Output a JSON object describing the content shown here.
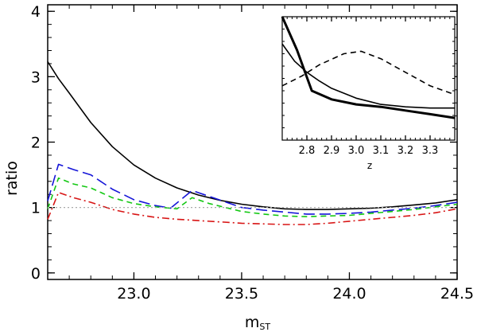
{
  "chart_data": [
    {
      "type": "line",
      "title": "",
      "xlabel": "m",
      "xlabel_subscript": "ST",
      "ylabel": "ratio",
      "xlim": [
        22.6,
        24.5
      ],
      "ylim": [
        -0.1,
        4.1
      ],
      "xticks": [
        23.0,
        23.5,
        24.0,
        24.5
      ],
      "xtick_labels": [
        "23.0",
        "23.5",
        "24.0",
        "24.5"
      ],
      "yticks": [
        0,
        1,
        2,
        3,
        4
      ],
      "ytick_labels": [
        "0",
        "1",
        "2",
        "3",
        "4"
      ],
      "x_minor_step": 0.1,
      "y_minor_step": 0.2,
      "grid": false,
      "series": [
        {
          "name": "solid black",
          "color": "#000000",
          "style": "solid",
          "x": [
            22.6,
            22.65,
            22.7,
            22.8,
            22.9,
            23.0,
            23.1,
            23.2,
            23.3,
            23.4,
            23.5,
            23.6,
            23.7,
            23.8,
            23.9,
            24.0,
            24.1,
            24.2,
            24.3,
            24.4,
            24.5
          ],
          "y": [
            3.23,
            2.97,
            2.75,
            2.3,
            1.93,
            1.65,
            1.45,
            1.3,
            1.19,
            1.11,
            1.05,
            1.01,
            0.98,
            0.97,
            0.97,
            0.98,
            0.99,
            1.01,
            1.04,
            1.07,
            1.12
          ]
        },
        {
          "name": "blue long-dash",
          "color": "#1515d8",
          "style": "longdash",
          "x": [
            22.6,
            22.65,
            22.72,
            22.8,
            22.9,
            23.0,
            23.1,
            23.17,
            23.27,
            23.35,
            23.5,
            23.6,
            23.7,
            23.8,
            23.9,
            24.0,
            24.1,
            24.2,
            24.3,
            24.4,
            24.5
          ],
          "y": [
            1.1,
            1.66,
            1.58,
            1.5,
            1.28,
            1.12,
            1.03,
            0.99,
            1.26,
            1.17,
            1.0,
            0.96,
            0.93,
            0.9,
            0.9,
            0.91,
            0.93,
            0.96,
            0.99,
            1.03,
            1.08
          ]
        },
        {
          "name": "green dashed",
          "color": "#13c813",
          "style": "dash",
          "x": [
            22.6,
            22.65,
            22.72,
            22.8,
            22.9,
            23.0,
            23.1,
            23.2,
            23.27,
            23.35,
            23.5,
            23.6,
            23.7,
            23.8,
            23.9,
            24.0,
            24.1,
            24.2,
            24.3,
            24.4,
            24.5
          ],
          "y": [
            0.98,
            1.45,
            1.36,
            1.3,
            1.15,
            1.06,
            1.01,
            0.98,
            1.15,
            1.06,
            0.94,
            0.9,
            0.87,
            0.86,
            0.87,
            0.88,
            0.91,
            0.94,
            0.97,
            1.01,
            1.05
          ]
        },
        {
          "name": "red dash-dot",
          "color": "#d81515",
          "style": "dashdot",
          "x": [
            22.6,
            22.65,
            22.72,
            22.8,
            22.9,
            23.0,
            23.1,
            23.2,
            23.3,
            23.4,
            23.5,
            23.6,
            23.7,
            23.8,
            23.9,
            24.0,
            24.1,
            24.2,
            24.3,
            24.4,
            24.5
          ],
          "y": [
            0.82,
            1.23,
            1.15,
            1.08,
            0.97,
            0.9,
            0.85,
            0.82,
            0.8,
            0.78,
            0.76,
            0.75,
            0.74,
            0.74,
            0.76,
            0.79,
            0.82,
            0.85,
            0.88,
            0.92,
            0.98
          ]
        },
        {
          "name": "reference ratio = 1",
          "color": "#aaaaaa",
          "style": "dotted",
          "x": [
            22.6,
            24.5
          ],
          "y": [
            1.0,
            1.0
          ]
        }
      ]
    },
    {
      "type": "line",
      "title": "",
      "xlabel": "z",
      "ylabel": "",
      "xlim": [
        2.7,
        3.4
      ],
      "ylim": [
        0,
        1
      ],
      "xticks": [
        2.8,
        2.9,
        3.0,
        3.1,
        3.2,
        3.3
      ],
      "xtick_labels": [
        "2.8",
        "2.9",
        "3.0",
        "3.1",
        "3.2",
        "3.3"
      ],
      "x_minor_step": 0.02,
      "y_minor_step": 0.1,
      "grid": false,
      "series": [
        {
          "name": "thick solid",
          "color": "#000000",
          "style": "thick",
          "x": [
            2.7,
            2.76,
            2.82,
            2.9,
            3.0,
            3.1,
            3.2,
            3.3,
            3.4
          ],
          "y": [
            1.0,
            0.73,
            0.4,
            0.33,
            0.29,
            0.27,
            0.24,
            0.21,
            0.18
          ]
        },
        {
          "name": "thin solid",
          "color": "#000000",
          "style": "solid",
          "x": [
            2.7,
            2.75,
            2.8,
            2.85,
            2.9,
            3.0,
            3.1,
            3.2,
            3.3,
            3.4
          ],
          "y": [
            0.78,
            0.64,
            0.55,
            0.48,
            0.42,
            0.34,
            0.29,
            0.27,
            0.26,
            0.26
          ]
        },
        {
          "name": "dashed",
          "color": "#000000",
          "style": "dash",
          "x": [
            2.7,
            2.78,
            2.85,
            2.95,
            3.02,
            3.1,
            3.2,
            3.3,
            3.4
          ],
          "y": [
            0.44,
            0.52,
            0.61,
            0.7,
            0.72,
            0.66,
            0.55,
            0.44,
            0.37
          ]
        }
      ]
    }
  ]
}
